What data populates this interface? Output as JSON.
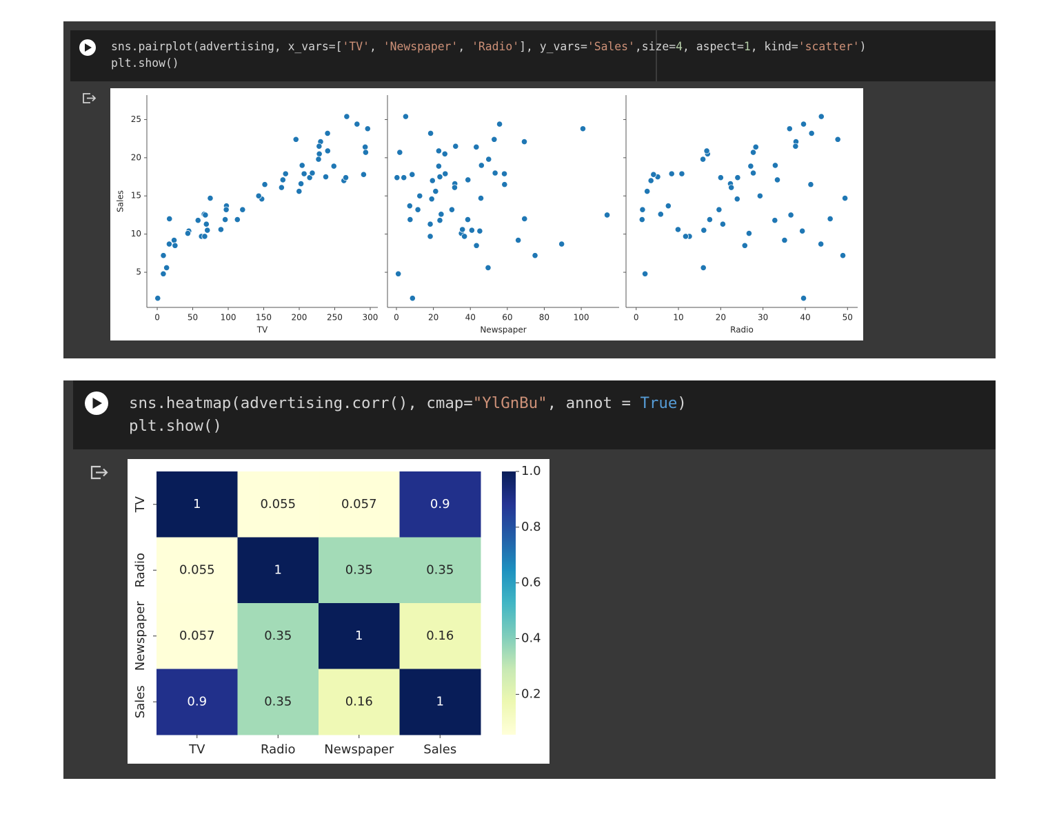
{
  "cells": [
    {
      "code": [
        [
          {
            "text": "sns.pairplot(advertising, x_vars=[",
            "color": "#d4d4d4"
          },
          {
            "text": "'TV'",
            "color": "#ce9178"
          },
          {
            "text": ", ",
            "color": "#d4d4d4"
          },
          {
            "text": "'Newspaper'",
            "color": "#ce9178"
          },
          {
            "text": ", ",
            "color": "#d4d4d4"
          },
          {
            "text": "'Radio'",
            "color": "#ce9178"
          },
          {
            "text": "], y_vars=",
            "color": "#d4d4d4"
          },
          {
            "text": "'Sales'",
            "color": "#ce9178"
          },
          {
            "text": ",size=",
            "color": "#d4d4d4"
          },
          {
            "text": "4",
            "color": "#b5cea8"
          },
          {
            "text": ", aspect=",
            "color": "#d4d4d4"
          },
          {
            "text": "1",
            "color": "#b5cea8"
          },
          {
            "text": ", kind=",
            "color": "#d4d4d4"
          },
          {
            "text": "'scatter'",
            "color": "#ce9178"
          },
          {
            "text": ")",
            "color": "#d4d4d4"
          }
        ],
        [
          {
            "text": "plt.show()",
            "color": "#d4d4d4"
          }
        ]
      ]
    },
    {
      "code": [
        [
          {
            "text": "sns.heatmap(advertising.corr(), cmap=",
            "color": "#d4d4d4"
          },
          {
            "text": "\"YlGnBu\"",
            "color": "#ce9178"
          },
          {
            "text": ", annot = ",
            "color": "#d4d4d4"
          },
          {
            "text": "True",
            "color": "#569cd6"
          },
          {
            "text": ")",
            "color": "#d4d4d4"
          }
        ],
        [
          {
            "text": "plt.show()",
            "color": "#d4d4d4"
          }
        ]
      ]
    }
  ],
  "chart_data": [
    {
      "type": "scatter",
      "xlabel": "TV",
      "ylabel": "Sales",
      "color": "#1f77b4",
      "x": [
        230.1,
        44.5,
        17.2,
        151.5,
        180.8,
        8.7,
        57.5,
        120.2,
        8.6,
        199.8,
        66.1,
        214.7,
        23.8,
        97.5,
        204.1,
        195.4,
        67.8,
        281.4,
        69.2,
        147.3,
        218.4,
        237.4,
        13.2,
        228.3,
        62.3,
        262.9,
        142.9,
        240.1,
        248.8,
        70.6,
        292.9,
        112.9,
        97.2,
        265.6,
        95.7,
        290.7,
        266.9,
        74.7,
        43.1,
        228,
        202.5,
        177,
        293.6,
        206.9,
        25.1,
        175.1,
        89.7,
        239.9,
        227.2,
        66.9,
        0.7,
        296.4,
        16.9
      ],
      "values": [
        22.1,
        10.4,
        12.0,
        16.5,
        17.9,
        7.2,
        11.8,
        13.2,
        4.8,
        15.6,
        12.6,
        17.4,
        9.2,
        13.7,
        19,
        22.4,
        12.5,
        24.4,
        11.3,
        14.6,
        18,
        17.5,
        5.6,
        20.5,
        9.7,
        17,
        15,
        20.9,
        18.9,
        10.5,
        21.4,
        11.9,
        13.2,
        17.4,
        11.9,
        17.8,
        25.4,
        14.7,
        10.1,
        21.5,
        16.6,
        17.1,
        20.7,
        17.9,
        8.5,
        16.1,
        10.6,
        23.2,
        19.8,
        9.7,
        1.6,
        23.8,
        8.7
      ],
      "xlim": [
        -14.6,
        310.7
      ],
      "ylim": [
        0.4,
        28.2
      ],
      "xticks": [
        0,
        50,
        100,
        150,
        200,
        250,
        300
      ],
      "yticks": [
        5,
        10,
        15,
        20,
        25
      ]
    },
    {
      "type": "scatter",
      "xlabel": "Newspaper",
      "color": "#1f77b4",
      "x": [
        69.2,
        45.1,
        69.3,
        58.5,
        58.4,
        75,
        23.5,
        11.6,
        1,
        21.2,
        24.2,
        4,
        65.9,
        7.2,
        46,
        52.9,
        114,
        55.8,
        18.3,
        19.1,
        53.4,
        23.5,
        49.6,
        26.2,
        18.3,
        19.5,
        12.6,
        22.9,
        22.9,
        40.8,
        43.2,
        38.6,
        30,
        0.3,
        7.4,
        8.5,
        5,
        45.7,
        35.1,
        32,
        31.6,
        38.7,
        1.8,
        26.4,
        43.3,
        31.5,
        35.7,
        18.5,
        49.9,
        36.8,
        8.7,
        100.9,
        89.4
      ],
      "values": [
        22.1,
        10.4,
        12.0,
        16.5,
        17.9,
        7.2,
        11.8,
        13.2,
        4.8,
        15.6,
        12.6,
        17.4,
        9.2,
        13.7,
        19,
        22.4,
        12.5,
        24.4,
        11.3,
        14.6,
        18,
        17.5,
        5.6,
        20.5,
        9.7,
        17,
        15,
        20.9,
        18.9,
        10.5,
        21.4,
        11.9,
        13.2,
        17.4,
        11.9,
        17.8,
        25.4,
        14.7,
        10.1,
        21.5,
        16.6,
        17.1,
        20.7,
        17.9,
        8.5,
        16.1,
        10.6,
        23.2,
        19.8,
        9.7,
        1.6,
        23.8,
        8.7
      ],
      "xlim": [
        -4.85,
        120.5
      ],
      "ylim": [
        0.4,
        28.2
      ],
      "xticks": [
        0,
        20,
        40,
        60,
        80,
        100
      ]
    },
    {
      "type": "scatter",
      "xlabel": "Radio",
      "color": "#1f77b4",
      "x": [
        37.8,
        39.3,
        45.9,
        41.3,
        10.8,
        48.9,
        32.8,
        19.6,
        2.1,
        2.6,
        5.8,
        24,
        35.1,
        7.6,
        32.9,
        47.7,
        36.6,
        39.6,
        20.5,
        23.9,
        27.7,
        5.1,
        15.9,
        16.9,
        12.6,
        3.5,
        29.3,
        16.7,
        27.1,
        16,
        28.3,
        17.4,
        1.5,
        20,
        1.4,
        4.1,
        43.8,
        49.4,
        26.7,
        37.7,
        22.3,
        33.4,
        27.7,
        8.4,
        25.7,
        22.5,
        9.9,
        41.5,
        15.8,
        11.7,
        39.6,
        36.3,
        43.7
      ],
      "values": [
        22.1,
        10.4,
        12.0,
        16.5,
        17.9,
        7.2,
        11.8,
        13.2,
        4.8,
        15.6,
        12.6,
        17.4,
        9.2,
        13.7,
        19,
        22.4,
        12.5,
        24.4,
        11.3,
        14.6,
        18,
        17.5,
        5.6,
        20.5,
        9.7,
        17,
        15,
        20.9,
        18.9,
        10.5,
        21.4,
        11.9,
        13.2,
        17.4,
        11.9,
        17.8,
        25.4,
        14.7,
        10.1,
        21.5,
        16.6,
        17.1,
        20.7,
        17.9,
        8.5,
        16.1,
        10.6,
        23.2,
        19.8,
        9.7,
        1.6,
        23.8,
        8.7
      ],
      "xlim": [
        -2.4,
        52.4
      ],
      "ylim": [
        0.4,
        28.2
      ],
      "xticks": [
        0,
        10,
        20,
        30,
        40,
        50
      ]
    },
    {
      "type": "heatmap",
      "x_categories": [
        "TV",
        "Radio",
        "Newspaper",
        "Sales"
      ],
      "y_categories": [
        "TV",
        "Radio",
        "Newspaper",
        "Sales"
      ],
      "values": [
        [
          1,
          0.055,
          0.057,
          0.9
        ],
        [
          0.055,
          1,
          0.35,
          0.35
        ],
        [
          0.057,
          0.35,
          1,
          0.16
        ],
        [
          0.9,
          0.35,
          0.16,
          1
        ]
      ],
      "colorscale": [
        "#ffffd9",
        "#edf8b1",
        "#c7e9b4",
        "#7fcdbb",
        "#41b6c4",
        "#1d91c0",
        "#225ea8",
        "#253494",
        "#081d58"
      ],
      "clim": [
        0.055,
        1
      ],
      "cticks": [
        0.2,
        0.4,
        0.6,
        0.8,
        {
          "value": 1,
          "label": "1.0"
        }
      ]
    }
  ]
}
